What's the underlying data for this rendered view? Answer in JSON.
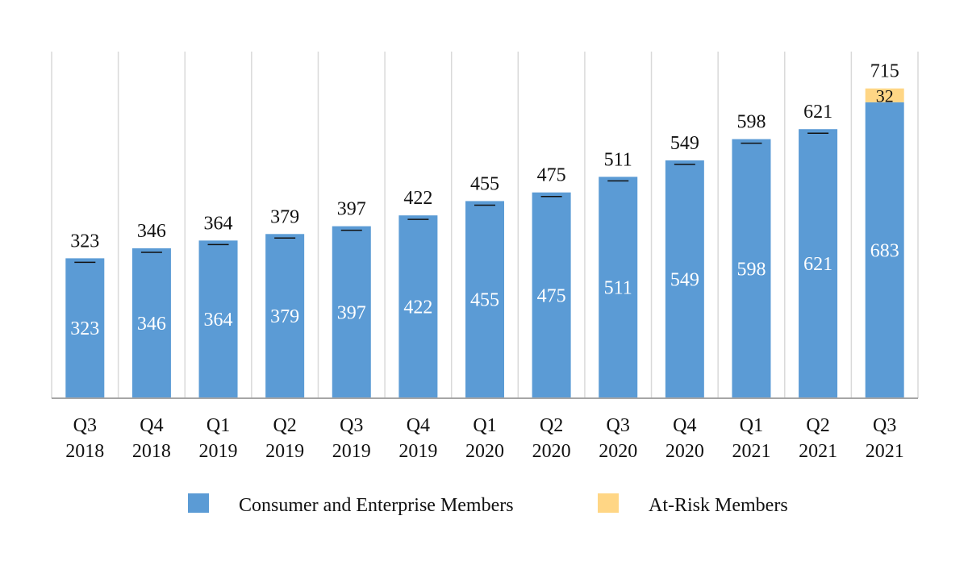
{
  "chart_data": {
    "type": "bar",
    "stacked": true,
    "categories": [
      [
        "Q3",
        "2018"
      ],
      [
        "Q4",
        "2018"
      ],
      [
        "Q1",
        "2019"
      ],
      [
        "Q2",
        "2019"
      ],
      [
        "Q3",
        "2019"
      ],
      [
        "Q4",
        "2019"
      ],
      [
        "Q1",
        "2020"
      ],
      [
        "Q2",
        "2020"
      ],
      [
        "Q3",
        "2020"
      ],
      [
        "Q4",
        "2020"
      ],
      [
        "Q1",
        "2021"
      ],
      [
        "Q2",
        "2021"
      ],
      [
        "Q3",
        "2021"
      ]
    ],
    "series": [
      {
        "name": "Consumer and Enterprise Members",
        "color": "#5B9BD5",
        "values": [
          323,
          346,
          364,
          379,
          397,
          422,
          455,
          475,
          511,
          549,
          598,
          621,
          683
        ]
      },
      {
        "name": "At-Risk Members",
        "color": "#FFD685",
        "values": [
          0,
          0,
          0,
          0,
          0,
          0,
          0,
          0,
          0,
          0,
          0,
          0,
          32
        ]
      }
    ],
    "totals": [
      323,
      346,
      364,
      379,
      397,
      422,
      455,
      475,
      511,
      549,
      598,
      621,
      715
    ],
    "ylim": [
      0,
      800
    ],
    "grid": "vertical",
    "legend": "bottom"
  }
}
